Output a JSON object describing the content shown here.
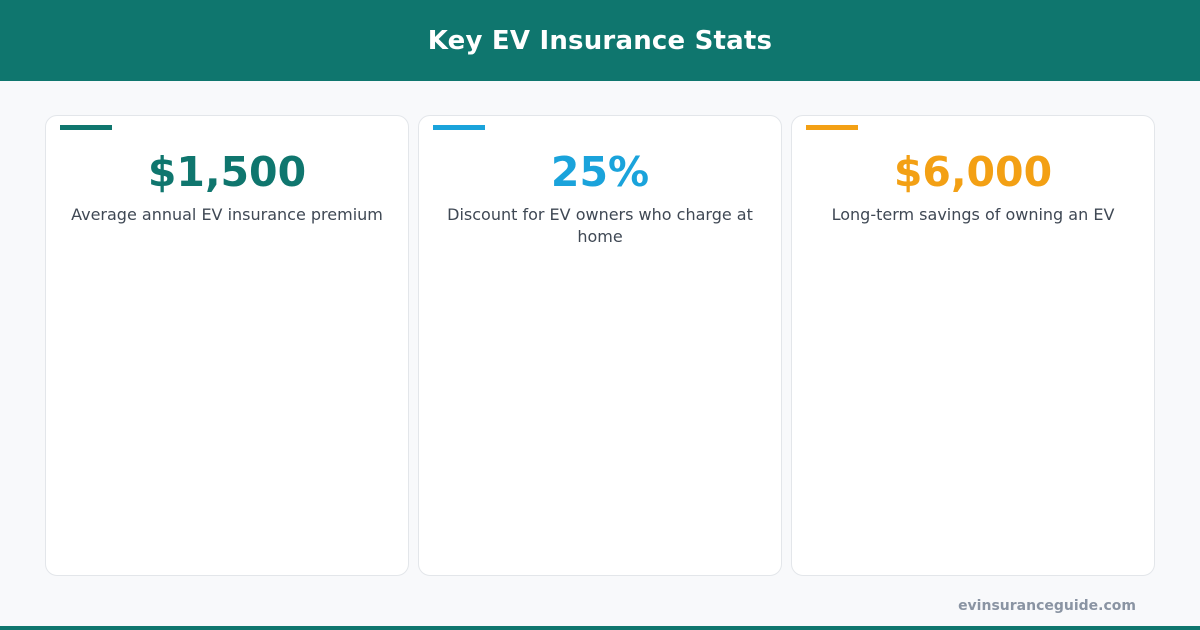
{
  "header": {
    "title": "Key EV Insurance Stats"
  },
  "colors": {
    "brand": "#0f766e",
    "blue": "#1aa3db",
    "orange": "#f3a014",
    "label_text": "#3f4854",
    "muted": "#8a94a3"
  },
  "stats": [
    {
      "value": "$1,500",
      "label": "Average annual EV insurance premium",
      "color": "#0f766e"
    },
    {
      "value": "25%",
      "label": "Discount for EV owners who charge at home",
      "color": "#1aa3db"
    },
    {
      "value": "$6,000",
      "label": "Long-term savings of owning an EV",
      "color": "#f3a014"
    }
  ],
  "footer": {
    "site": "evinsuranceguide.com"
  }
}
